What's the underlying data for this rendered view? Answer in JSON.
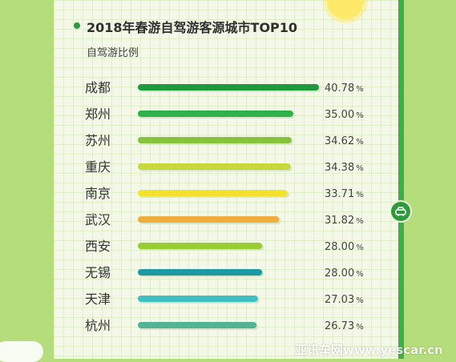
{
  "watermark": "亚讯车网www.yescar.cn",
  "chart_data": {
    "type": "bar",
    "orientation": "horizontal",
    "title": "2018年春游自驾游客源城市TOP10",
    "subtitle": "自驾游比例",
    "xlim": [
      0,
      40.78
    ],
    "categories": [
      "成都",
      "郑州",
      "苏州",
      "重庆",
      "南京",
      "武汉",
      "西安",
      "无锡",
      "天津",
      "杭州"
    ],
    "values": [
      40.78,
      35.0,
      34.62,
      34.38,
      33.71,
      31.82,
      28.0,
      28.0,
      27.03,
      26.73
    ],
    "value_labels": [
      "40.78",
      "35.00",
      "34.62",
      "34.38",
      "33.71",
      "31.82",
      "28.00",
      "28.00",
      "27.03",
      "26.73"
    ],
    "unit": "%",
    "colors": [
      "#1e9a3c",
      "#2fb24a",
      "#86c33a",
      "#c7d83a",
      "#f2e22c",
      "#f0ac3c",
      "#99cc33",
      "#1b9aa4",
      "#3fbfc2",
      "#4fb394"
    ]
  }
}
